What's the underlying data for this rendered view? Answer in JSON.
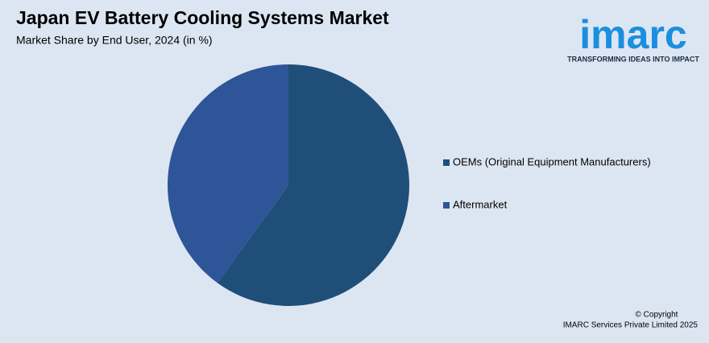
{
  "chart_data": {
    "type": "pie",
    "title": "Japan EV Battery Cooling Systems Market",
    "subtitle": "Market Share by End User, 2024 (in %)",
    "categories": [
      "OEMs (Original Equipment Manufacturers)",
      "Aftermarket"
    ],
    "values": [
      60,
      40
    ],
    "colors": [
      "#1f4e79",
      "#2e5597"
    ],
    "legend": "right"
  },
  "logo": {
    "name": "imarc",
    "tagline": "TRANSFORMING IDEAS INTO IMPACT"
  },
  "footer": [
    "© Copyright",
    "IMARC Services Private Limited 2025"
  ]
}
